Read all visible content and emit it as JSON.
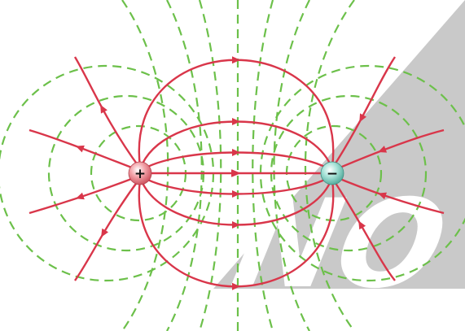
{
  "diagram": {
    "positive_charge": {
      "symbol": "+",
      "fill": "#e8707a"
    },
    "negative_charge": {
      "symbol": "−",
      "fill": "#7fcfc0"
    },
    "colors": {
      "field_line": "#d9364a",
      "equipotential": "#6cc04a",
      "background_band": "#c9c9c9",
      "watermark_text": "#ffffff"
    },
    "watermark": {
      "text": "NO"
    }
  }
}
